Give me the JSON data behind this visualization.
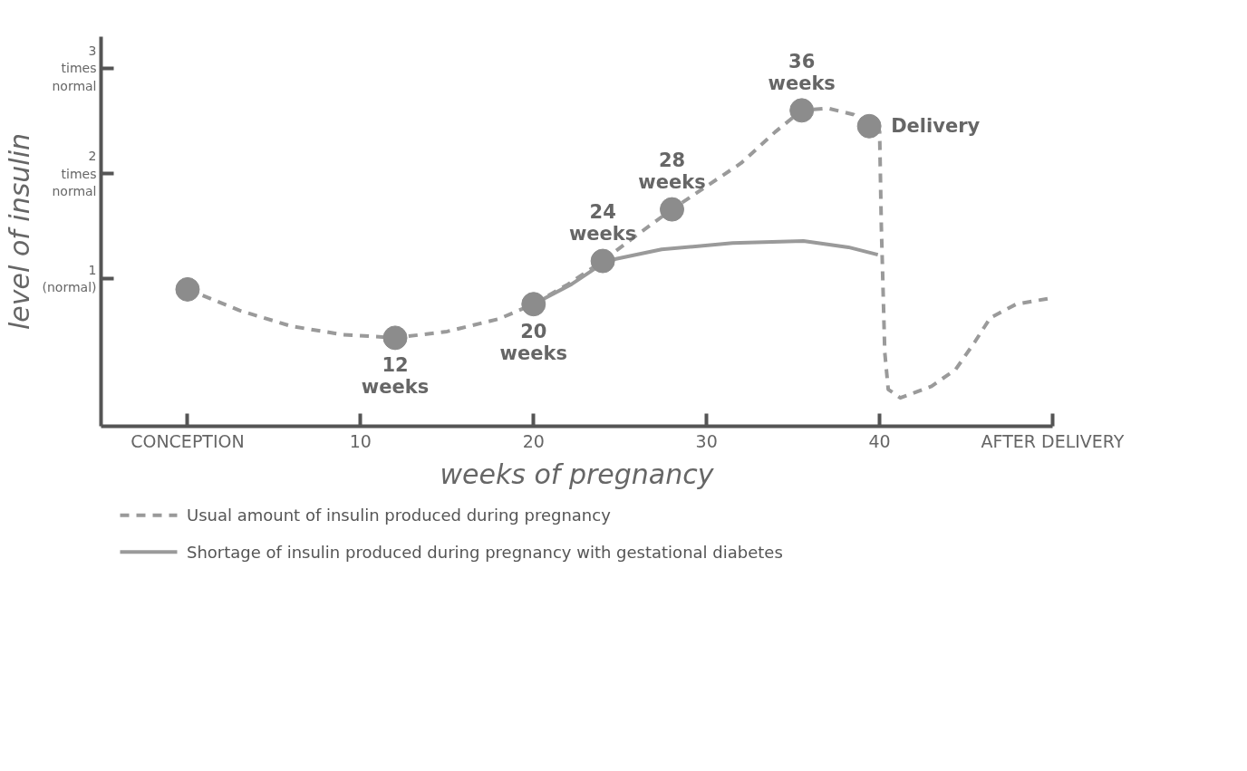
{
  "chart_data": {
    "type": "line",
    "xlabel": "weeks of pregnancy",
    "ylabel": "level of insulin",
    "xlim": [
      -5,
      50
    ],
    "ylim": [
      -0.4,
      3.3
    ],
    "xticks": [
      {
        "value": 0,
        "label": "CONCEPTION"
      },
      10,
      20,
      30,
      40,
      {
        "value": 50,
        "label": "AFTER DELIVERY"
      }
    ],
    "yticks": [
      {
        "value": 1,
        "label": "1\n(normal)"
      },
      {
        "value": 2,
        "label": "2\ntimes\nnormal"
      },
      {
        "value": 3,
        "label": "3\ntimes\nnormal"
      }
    ],
    "grid": false,
    "legend": "bottom",
    "series": [
      {
        "name": "Usual amount of insulin produced during pregnancy",
        "color": "#9a9a9a",
        "line_style": "dashed",
        "x": [
          0,
          3,
          6,
          9,
          12,
          15,
          18,
          20,
          22,
          24,
          26,
          28,
          30,
          32,
          34,
          35.5,
          37,
          38.5,
          39.4,
          40,
          40.1,
          40.3,
          40.5,
          41.2,
          43,
          44.4,
          45.5,
          46.4,
          47.9,
          50
        ],
        "values": [
          0.9,
          0.7,
          0.55,
          0.47,
          0.44,
          0.5,
          0.62,
          0.76,
          0.95,
          1.17,
          1.42,
          1.66,
          1.88,
          2.1,
          2.4,
          2.6,
          2.62,
          2.56,
          2.45,
          2.4,
          1.5,
          0.3,
          -0.05,
          -0.13,
          -0.02,
          0.14,
          0.4,
          0.63,
          0.76,
          0.82
        ]
      },
      {
        "name": "Shortage of insulin produced during pregnancy with gestational diabetes",
        "color": "#9a9a9a",
        "line_style": "solid",
        "x": [
          20,
          22.2,
          24.2,
          27.4,
          31.5,
          35.6,
          38.2,
          39.9
        ],
        "values": [
          0.76,
          0.95,
          1.17,
          1.28,
          1.34,
          1.36,
          1.3,
          1.23
        ]
      },
      {
        "type": "scatter",
        "marker": "circle",
        "color": "#8c8c8c",
        "x": [
          0,
          12,
          20,
          24,
          28,
          35.5,
          39.4
        ],
        "values": [
          0.9,
          0.44,
          0.76,
          1.17,
          1.66,
          2.6,
          2.45
        ]
      }
    ],
    "annotations": [
      {
        "text": "12\nweeks",
        "x": 12,
        "y": 0.44
      },
      {
        "text": "20\nweeks",
        "x": 20,
        "y": 0.76
      },
      {
        "text": "24\nweeks",
        "x": 24,
        "y": 1.17
      },
      {
        "text": "28\nweeks",
        "x": 28,
        "y": 1.66
      },
      {
        "text": "36\nweeks",
        "x": 35.5,
        "y": 2.6
      },
      {
        "text": "Delivery",
        "x": 39.4,
        "y": 2.45
      }
    ]
  }
}
